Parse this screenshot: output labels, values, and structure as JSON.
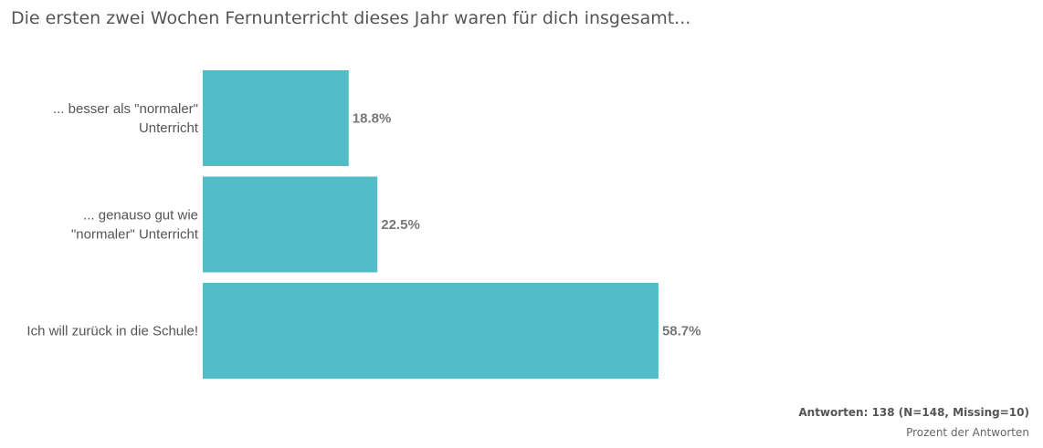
{
  "chart_data": {
    "type": "bar",
    "orientation": "horizontal",
    "title": "Die ersten zwei Wochen Fernunterricht dieses Jahr waren für dich insgesamt...",
    "categories": [
      [
        "... besser als \"normaler\"",
        "Unterricht"
      ],
      [
        "... genauso gut wie",
        "\"normaler\" Unterricht"
      ],
      [
        "Ich will zurück in die Schule!"
      ]
    ],
    "values": [
      18.8,
      22.5,
      58.7
    ],
    "value_labels": [
      "18.8%",
      "22.5%",
      "58.7%"
    ],
    "xlabel": "Prozent der Antworten",
    "xlim": [
      0,
      100
    ],
    "grid": false,
    "bar_color": "#53bcc8"
  },
  "footer": {
    "responses": "Antworten: 138 (N=148, Missing=10)",
    "axis_label": "Prozent der Antworten"
  }
}
